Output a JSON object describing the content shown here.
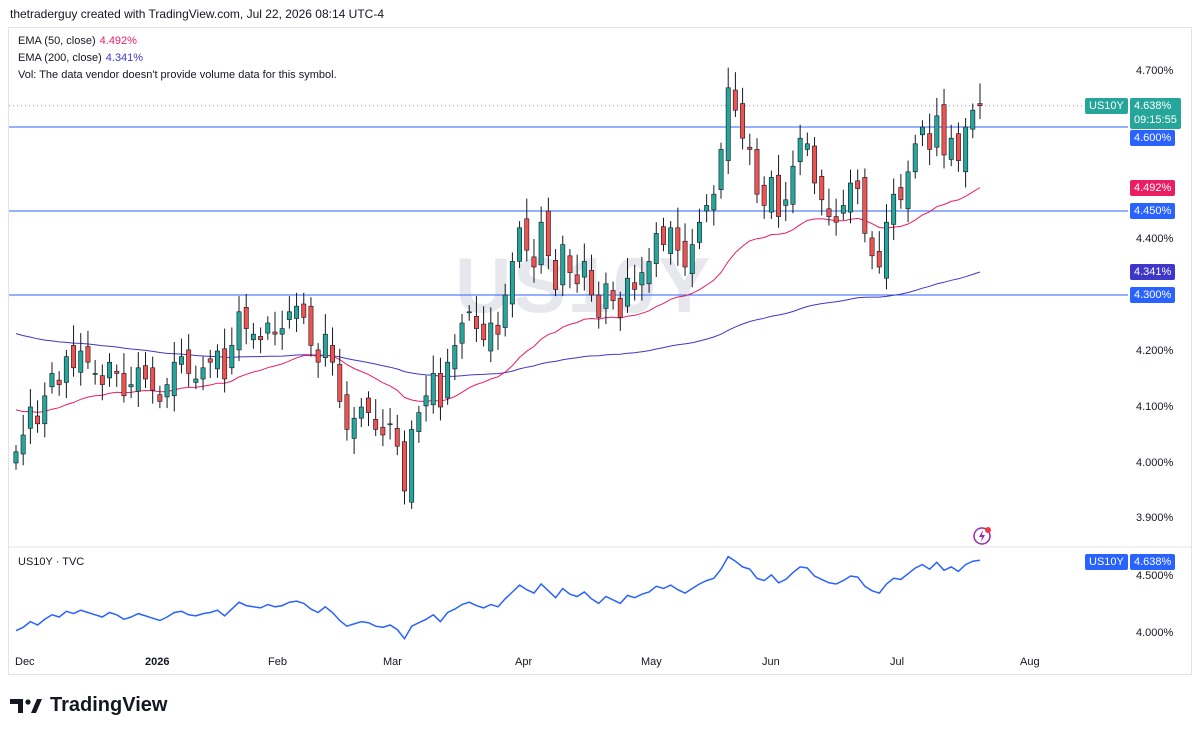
{
  "header": {
    "text": "thetraderguy created with TradingView.com, Jul 22, 2026 08:14 UTC-4"
  },
  "legend": {
    "ema50_label": "EMA (50, close)",
    "ema50_value": "4.492%",
    "ema200_label": "EMA (200, close)",
    "ema200_value": "4.341%",
    "vol_text": "Vol: The data vendor doesn't provide volume data for this symbol."
  },
  "watermark": "US10Y",
  "symbol_tag": {
    "symbol": "US10Y",
    "price": "4.638%",
    "countdown": "09:15:55"
  },
  "price_tags": {
    "level_high": "4.600%",
    "ema50": "4.492%",
    "level_mid": "4.450%",
    "ema200": "4.341%",
    "level_low": "4.300%"
  },
  "y_labels": [
    "4.700%",
    "4.400%",
    "4.200%",
    "4.100%",
    "4.000%",
    "3.900%"
  ],
  "x_labels": [
    "Dec",
    "2026",
    "Feb",
    "Mar",
    "Apr",
    "May",
    "Jun",
    "Jul",
    "Aug"
  ],
  "lower_pane": {
    "title": "US10Y · TVC",
    "symbol": "US10Y",
    "price": "4.638%",
    "y_labels": [
      "4.500%",
      "4.000%"
    ]
  },
  "brand": "TradingView",
  "colors": {
    "up": "#26a69a",
    "down": "#ef5350",
    "ema50": "#e91e63",
    "ema200": "#3f37c9",
    "level": "#2962ff",
    "close_line": "#26a69a"
  },
  "chart_data": [
    {
      "type": "candlestick",
      "title": "US10Y",
      "y_unit": "%",
      "ylim": [
        3.87,
        4.76
      ],
      "x_range": [
        "2025-12-01",
        "2026-08-14"
      ],
      "horizontal_levels": [
        4.6,
        4.45,
        4.3
      ],
      "close_series": [
        4.02,
        4.05,
        4.1,
        4.07,
        4.12,
        4.16,
        4.14,
        4.19,
        4.17,
        4.2,
        4.18,
        4.16,
        4.14,
        4.18,
        4.16,
        4.12,
        4.14,
        4.17,
        4.15,
        4.13,
        4.11,
        4.14,
        4.18,
        4.19,
        4.16,
        4.15,
        4.17,
        4.18,
        4.2,
        4.15,
        4.21,
        4.27,
        4.24,
        4.23,
        4.22,
        4.25,
        4.23,
        4.24,
        4.27,
        4.28,
        4.26,
        4.21,
        4.18,
        4.23,
        4.18,
        4.11,
        4.06,
        4.08,
        4.1,
        4.09,
        4.06,
        4.05,
        4.07,
        4.03,
        3.95,
        4.06,
        4.09,
        4.12,
        4.16,
        4.1,
        4.18,
        4.21,
        4.25,
        4.27,
        4.24,
        4.22,
        4.25,
        4.23,
        4.3,
        4.36,
        4.42,
        4.38,
        4.35,
        4.43,
        4.37,
        4.31,
        4.39,
        4.34,
        4.32,
        4.36,
        4.3,
        4.26,
        4.32,
        4.29,
        4.26,
        4.33,
        4.31,
        4.34,
        4.36,
        4.41,
        4.39,
        4.42,
        4.38,
        4.35,
        4.39,
        4.43,
        4.46,
        4.48,
        4.56,
        4.67,
        4.63,
        4.58,
        4.56,
        4.48,
        4.46,
        4.51,
        4.44,
        4.47,
        4.53,
        4.58,
        4.57,
        4.5,
        4.47,
        4.44,
        4.43,
        4.46,
        4.5,
        4.49,
        4.41,
        4.37,
        4.35,
        4.43,
        4.48,
        4.47,
        4.52,
        4.57,
        4.6,
        4.56,
        4.62,
        4.55,
        4.58,
        4.54,
        4.6,
        4.63,
        4.638
      ],
      "ema_50": {
        "last": 4.492
      },
      "ema_200": {
        "last": 4.341
      },
      "last_price": 4.638
    },
    {
      "type": "line",
      "title": "US10Y · TVC",
      "ylim": [
        3.9,
        4.75
      ],
      "series": "close_series",
      "last_price": 4.638
    }
  ]
}
